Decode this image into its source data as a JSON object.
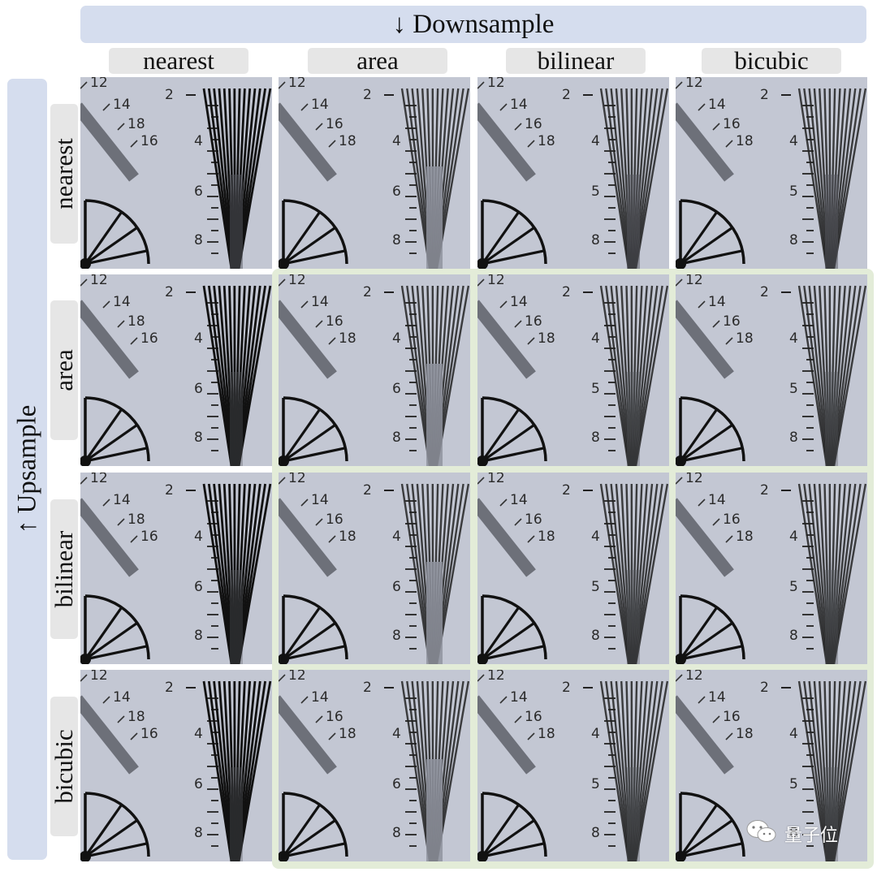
{
  "header": {
    "downsample_label": "↓ Downsample",
    "upsample_label": "↑ Upsample"
  },
  "columns": [
    "nearest",
    "area",
    "bilinear",
    "bicubic"
  ],
  "rows": [
    "nearest",
    "area",
    "bilinear",
    "bicubic"
  ],
  "tile_text": {
    "nearest": {
      "nums": [
        "12",
        "14",
        "18",
        "16"
      ],
      "top": "2",
      "scale": [
        "4",
        "6",
        "8"
      ]
    },
    "area": {
      "nums": [
        "12",
        "14",
        "16",
        "18"
      ],
      "top": "2",
      "scale": [
        "4",
        "6",
        "8"
      ]
    },
    "bilinear": {
      "nums": [
        "12",
        "14",
        "16",
        "18"
      ],
      "top": "2",
      "scale": [
        "4",
        "5",
        "8"
      ]
    },
    "bicubic": {
      "nums": [
        "12",
        "14",
        "16",
        "18"
      ],
      "top": "2",
      "scale": [
        "4",
        "5",
        "8"
      ]
    }
  },
  "watermark": {
    "text": "量子位",
    "icon": "wechat-icon"
  },
  "colors": {
    "banner": "#d5ddee",
    "label_bg": "#e6e6e6",
    "highlight": "#e3ecd8",
    "tile_bg": "#c3c7d3"
  }
}
